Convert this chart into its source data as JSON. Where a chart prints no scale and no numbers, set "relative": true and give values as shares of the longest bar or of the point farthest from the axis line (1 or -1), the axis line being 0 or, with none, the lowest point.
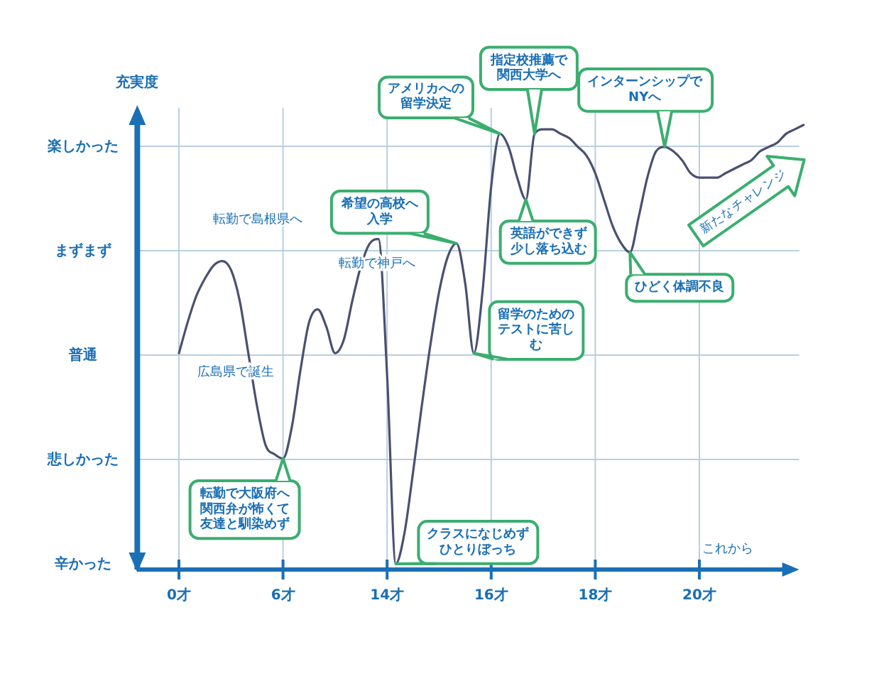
{
  "chart_data": {
    "type": "line",
    "ylabel": "充実度",
    "relative": true,
    "categories": [
      "0才",
      null,
      null,
      null,
      null,
      null,
      null,
      null,
      null,
      null,
      null,
      null,
      "6才",
      null,
      null,
      null,
      null,
      null,
      null,
      null,
      null,
      null,
      null,
      null,
      "14才",
      null,
      null,
      null,
      null,
      null,
      null,
      null,
      null,
      null,
      null,
      null,
      "16才",
      null,
      null,
      null,
      null,
      null,
      null,
      null,
      null,
      null,
      null,
      null,
      "18才",
      null,
      null,
      null,
      null,
      null,
      null,
      null,
      null,
      null,
      null,
      null,
      "20才",
      null,
      null,
      null,
      null,
      null,
      null,
      null,
      null,
      null,
      null,
      null,
      null
    ],
    "series": [
      {
        "color": "#4a5070",
        "values": [
          0.48,
          0.55,
          0.61,
          0.65,
          0.68,
          0.69,
          0.67,
          0.6,
          0.48,
          0.36,
          0.27,
          0.25,
          0.24,
          0.31,
          0.44,
          0.55,
          0.58,
          0.54,
          0.48,
          0.51,
          0.6,
          0.68,
          0.73,
          0.74,
          0.43,
          0,
          0.07,
          0.21,
          0.36,
          0.5,
          0.62,
          0.7,
          0.73,
          0.64,
          0.48,
          0.62,
          0.86,
          0.98,
          0.95,
          0.88,
          0.83,
          0.98,
          0.99,
          0.99,
          0.98,
          0.97,
          0.95,
          0.93,
          0.89,
          0.83,
          0.77,
          0.73,
          0.71,
          0.79,
          0.88,
          0.94,
          0.95,
          0.94,
          0.92,
          0.89,
          0.88,
          0.88,
          0.88,
          0.89,
          0.9,
          0.91,
          0.92,
          0.94,
          0.95,
          0.96,
          0.98,
          0.99,
          1
        ]
      }
    ],
    "grid": true,
    "annotations": [
      "広島県で誕生",
      "転勤で島根県へ",
      "転勤で大阪府へ関西弁が怖くて友達と馴染めず",
      "転勤で神戸へ",
      "希望の高校へ入学",
      "クラスになじめずひとりぼっち",
      "留学のためのテストに苦しむ",
      "アメリカへの留学決定",
      "指定校推薦で関西大学へ",
      "英語ができず少し落ち込む",
      "ひどく体調不良",
      "インターンシップでNYへ",
      "新たなチャレンジ",
      "これから",
      "辛かった",
      "悲しかった",
      "普通",
      "まずまず",
      "楽しかった"
    ]
  }
}
